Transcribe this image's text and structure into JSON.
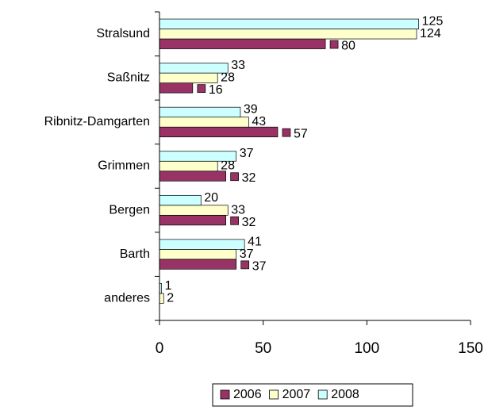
{
  "chart_data": {
    "type": "bar",
    "orientation": "horizontal",
    "categories": [
      "Stralsund",
      "Saßnitz",
      "Ribnitz-Damgarten",
      "Grimmen",
      "Bergen",
      "Barth",
      "anderes"
    ],
    "series": [
      {
        "name": "2006",
        "color": "#993366",
        "values": [
          80,
          16,
          57,
          32,
          32,
          37,
          null
        ]
      },
      {
        "name": "2007",
        "color": "#ffffcc",
        "values": [
          124,
          28,
          43,
          28,
          33,
          37,
          2
        ]
      },
      {
        "name": "2008",
        "color": "#ccffff",
        "values": [
          125,
          33,
          39,
          37,
          20,
          41,
          1
        ]
      }
    ],
    "xlim": [
      0,
      150
    ],
    "xticks": [
      0,
      50,
      100,
      150
    ],
    "legend": "bottom"
  }
}
